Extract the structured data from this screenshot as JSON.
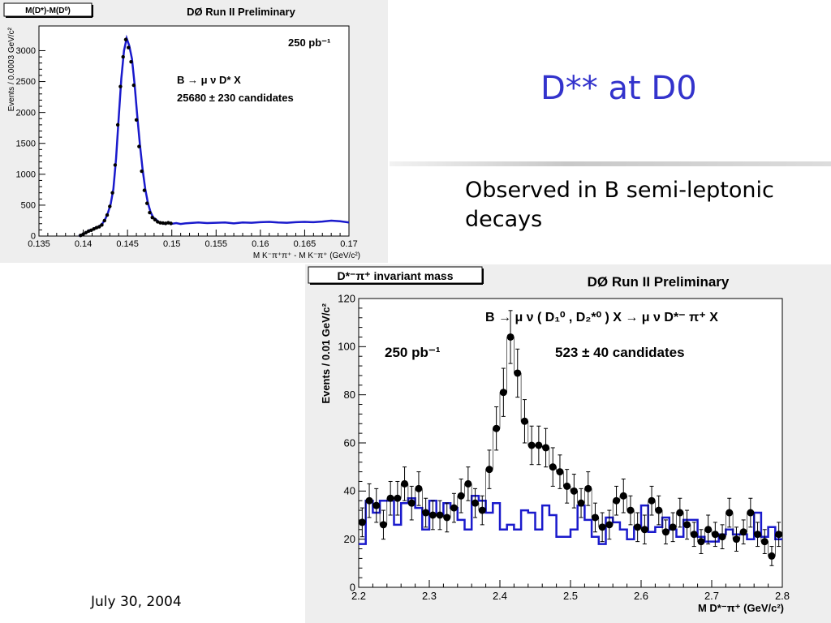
{
  "slide": {
    "title": "D** at D0",
    "bullet": "Observed in B semi-leptonic decays",
    "footer_date": "July 30, 2004"
  },
  "chart_data": [
    {
      "type": "line",
      "box_label": "M(D*)-M(D⁰)",
      "title": "DØ Run II Preliminary",
      "lumi": "250 pb⁻¹",
      "decay": "B → μ ν D* X",
      "candidates": "25680 ± 230 candidates",
      "ylabel": "Events / 0.0003 GeV/c²",
      "xlabel": "M K⁻π⁺π⁺ - M K⁻π⁺  (GeV/c²)",
      "xlim": [
        0.135,
        0.17
      ],
      "ylim": [
        0,
        3400
      ],
      "xticks": [
        "0.135",
        "0.14",
        "0.145",
        "0.15",
        "0.155",
        "0.16",
        "0.165",
        "0.17"
      ],
      "yticks": [
        "0",
        "500",
        "1000",
        "1500",
        "2000",
        "2500",
        "3000"
      ],
      "series": [
        {
          "color": "#1a1acc",
          "x": [
            0.1395,
            0.1398,
            0.1401,
            0.1404,
            0.1407,
            0.141,
            0.1413,
            0.1416,
            0.1419,
            0.1422,
            0.1425,
            0.1428,
            0.1431,
            0.1434,
            0.1437,
            0.144,
            0.1443,
            0.1446,
            0.1449,
            0.1452,
            0.1455,
            0.1458,
            0.1461,
            0.1464,
            0.1467,
            0.147,
            0.1473,
            0.1476,
            0.1479,
            0.1482,
            0.1485,
            0.1488,
            0.1491,
            0.1494,
            0.1497,
            0.15,
            0.1505,
            0.151,
            0.1515,
            0.152,
            0.153,
            0.154,
            0.155,
            0.156,
            0.157,
            0.158,
            0.159,
            0.16,
            0.161,
            0.162,
            0.163,
            0.164,
            0.165,
            0.166,
            0.167,
            0.168,
            0.169,
            0.17
          ],
          "y": [
            0,
            20,
            40,
            65,
            95,
            100,
            130,
            140,
            170,
            210,
            280,
            380,
            520,
            760,
            1250,
            1900,
            2550,
            3000,
            3200,
            3080,
            2870,
            2450,
            1950,
            1480,
            1080,
            760,
            540,
            390,
            300,
            270,
            230,
            215,
            200,
            210,
            215,
            200,
            210,
            195,
            205,
            210,
            220,
            210,
            215,
            220,
            205,
            220,
            215,
            225,
            230,
            220,
            215,
            225,
            230,
            225,
            235,
            250,
            240,
            220
          ]
        }
      ],
      "points": {
        "x": [
          0.1397,
          0.14,
          0.1403,
          0.1406,
          0.1409,
          0.1412,
          0.1415,
          0.1418,
          0.1421,
          0.1424,
          0.1427,
          0.143,
          0.1433,
          0.1436,
          0.1439,
          0.1442,
          0.1445,
          0.1448,
          0.1451,
          0.1454,
          0.1457,
          0.146,
          0.1463,
          0.1466,
          0.1469,
          0.1472,
          0.1475,
          0.1478,
          0.1481,
          0.1484,
          0.1487,
          0.149,
          0.1493,
          0.1496,
          0.1499
        ],
        "y": [
          10,
          30,
          55,
          80,
          95,
          115,
          135,
          150,
          180,
          250,
          340,
          480,
          700,
          1150,
          1800,
          2420,
          2900,
          3180,
          3050,
          2820,
          2440,
          1880,
          1450,
          1050,
          740,
          530,
          380,
          300,
          265,
          230,
          215,
          210,
          205,
          215,
          205
        ]
      }
    },
    {
      "type": "scatter",
      "box_label": "D*⁻π⁺ invariant mass",
      "title": "DØ Run II Preliminary",
      "decay": "B → μ ν ( D₁⁰ , D₂*⁰ ) X → μ ν D*⁻ π⁺ X",
      "lumi": "250 pb⁻¹",
      "candidates": "523 ± 40 candidates",
      "ylabel": "Events / 0.01 GeV/c²",
      "xlabel": "M D*⁻π⁺  (GeV/c²)",
      "xlim": [
        2.2,
        2.8
      ],
      "ylim": [
        0,
        120
      ],
      "xticks": [
        "2.2",
        "2.3",
        "2.4",
        "2.5",
        "2.6",
        "2.7",
        "2.8"
      ],
      "yticks": [
        "0",
        "20",
        "40",
        "60",
        "80",
        "100",
        "120"
      ],
      "data": {
        "x": [
          2.205,
          2.215,
          2.225,
          2.235,
          2.245,
          2.255,
          2.265,
          2.275,
          2.285,
          2.295,
          2.305,
          2.315,
          2.325,
          2.335,
          2.345,
          2.355,
          2.365,
          2.375,
          2.385,
          2.395,
          2.405,
          2.415,
          2.425,
          2.435,
          2.445,
          2.455,
          2.465,
          2.475,
          2.485,
          2.495,
          2.505,
          2.515,
          2.525,
          2.535,
          2.545,
          2.555,
          2.565,
          2.575,
          2.585,
          2.595,
          2.605,
          2.615,
          2.625,
          2.635,
          2.645,
          2.655,
          2.665,
          2.675,
          2.685,
          2.695,
          2.705,
          2.715,
          2.725,
          2.735,
          2.745,
          2.755,
          2.765,
          2.775,
          2.785,
          2.795
        ],
        "y": [
          27,
          36,
          34,
          26,
          37,
          37,
          43,
          35,
          41,
          31,
          30,
          30,
          29,
          33,
          38,
          43,
          35,
          32,
          49,
          66,
          81,
          104,
          89,
          69,
          59,
          59,
          58,
          50,
          48,
          42,
          40,
          35,
          41,
          29,
          25,
          26,
          36,
          38,
          32,
          25,
          24,
          36,
          32,
          23,
          25,
          31,
          26,
          22,
          19,
          24,
          22,
          21,
          31,
          20,
          23,
          31,
          22,
          19,
          13,
          22
        ],
        "err": [
          6,
          7,
          7,
          6,
          7,
          7,
          7,
          7,
          7,
          6,
          6,
          6,
          6,
          6,
          7,
          7,
          6,
          6,
          8,
          9,
          10,
          11,
          10,
          9,
          8,
          8,
          8,
          8,
          7,
          7,
          7,
          6,
          7,
          6,
          6,
          6,
          6,
          7,
          6,
          6,
          6,
          6,
          6,
          5,
          6,
          6,
          6,
          5,
          5,
          6,
          5,
          5,
          6,
          5,
          5,
          6,
          5,
          5,
          4,
          5
        ]
      },
      "background": {
        "color": "#1a1acc",
        "y": [
          18,
          36,
          31,
          36,
          36,
          26,
          35,
          37,
          33,
          24,
          36,
          30,
          35,
          33,
          28,
          24,
          38,
          36,
          31,
          35,
          24,
          26,
          24,
          32,
          31,
          24,
          34,
          30,
          21,
          21,
          24,
          34,
          28,
          21,
          18,
          29,
          27,
          24,
          20,
          25,
          34,
          23,
          25,
          29,
          24,
          21,
          28,
          28,
          21,
          19,
          19,
          22,
          24,
          22,
          22,
          20,
          31,
          21,
          25,
          20
        ]
      }
    }
  ]
}
